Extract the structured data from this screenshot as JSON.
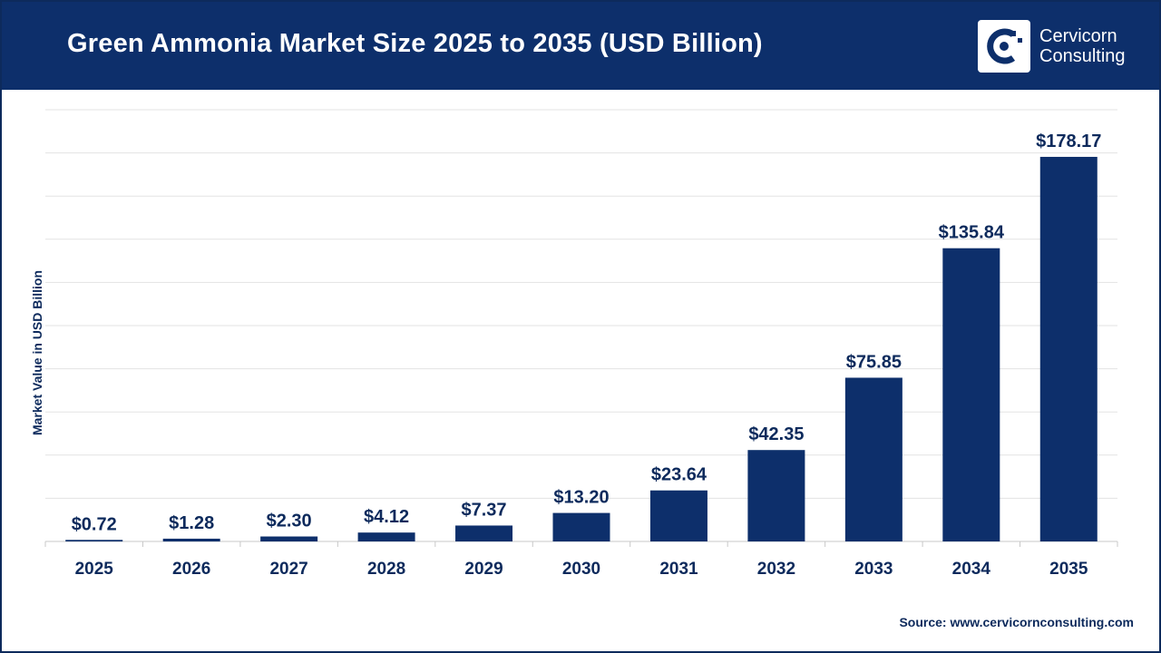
{
  "header": {
    "title": "Green Ammonia Market Size 2025 to 2035 (USD Billion)",
    "logo_line1": "Cervicorn",
    "logo_line2": "Consulting",
    "logo_icon": "cervicorn-logo-icon"
  },
  "colors": {
    "header_bg": "#0d2f6b",
    "bar": "#0d2f6b",
    "label": "#0d2a5c",
    "grid": "#e3e3e3"
  },
  "chart_data": {
    "type": "bar",
    "title": "Green Ammonia Market Size 2025 to 2035 (USD Billion)",
    "xlabel": "",
    "ylabel": "Market Value in USD Billion",
    "categories": [
      "2025",
      "2026",
      "2027",
      "2028",
      "2029",
      "2030",
      "2031",
      "2032",
      "2033",
      "2034",
      "2035"
    ],
    "values": [
      0.72,
      1.28,
      2.3,
      4.12,
      7.37,
      13.2,
      23.64,
      42.35,
      75.85,
      135.84,
      178.17
    ],
    "data_labels": [
      "$0.72",
      "$1.28",
      "$2.30",
      "$4.12",
      "$7.37",
      "$13.20",
      "$23.64",
      "$42.35",
      "$75.85",
      "$135.84",
      "$178.17"
    ],
    "ylim": [
      0,
      200
    ],
    "grid": true,
    "legend": "none"
  },
  "footer": {
    "source": "Source: www.cervicornconsulting.com"
  }
}
